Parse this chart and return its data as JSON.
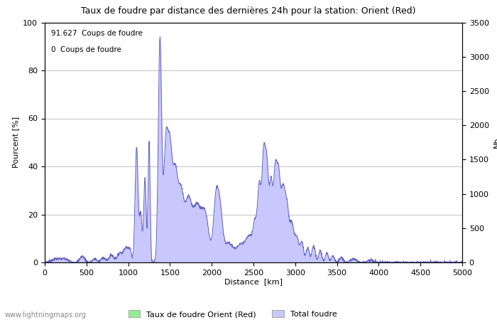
{
  "title": "Taux de foudre par distance des dernières 24h pour la station: Orient (Red)",
  "xlabel": "Distance  [km]",
  "ylabel_left": "Pourcent [%]",
  "ylabel_right": "Nb",
  "annotation_line1": "91.627  Coups de foudre",
  "annotation_line2": "0  Coups de foudre",
  "legend_label1": "Taux de foudre Orient (Red)",
  "legend_label2": "Total foudre",
  "fill_color_total": "#c8c8ff",
  "fill_color_rate": "#90ee90",
  "line_color": "#6060c0",
  "xlim": [
    0,
    5000
  ],
  "ylim_left": [
    0,
    100
  ],
  "ylim_right": [
    0,
    3500
  ],
  "xticks": [
    0,
    500,
    1000,
    1500,
    2000,
    2500,
    3000,
    3500,
    4000,
    4500,
    5000
  ],
  "yticks_left": [
    0,
    20,
    40,
    60,
    80,
    100
  ],
  "yticks_right": [
    0,
    500,
    1000,
    1500,
    2000,
    2500,
    3000,
    3500
  ],
  "watermark": "www.lightningmaps.org",
  "background_color": "#ffffff",
  "figwidth": 7.0,
  "figheight": 4.5,
  "dpi": 100
}
